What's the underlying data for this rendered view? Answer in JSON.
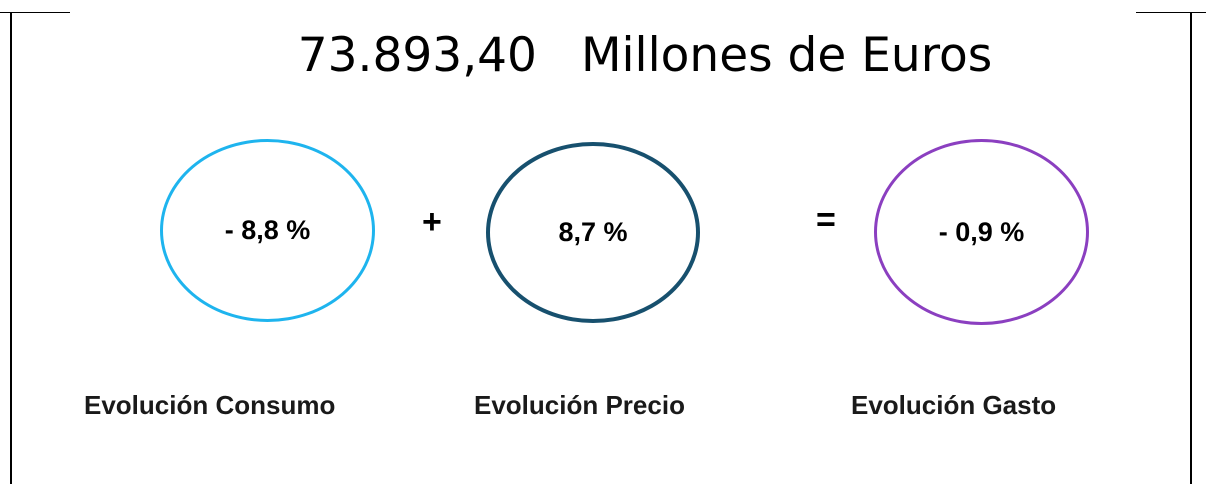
{
  "headline": {
    "amount": "73.893,40",
    "unit": "Millones de Euros"
  },
  "indicators": [
    {
      "key": "consumo",
      "value": "- 8,8 %",
      "label": "Evolución Consumo",
      "color": "#1eb4ee"
    },
    {
      "key": "precio",
      "value": "8,7 %",
      "label": "Evolución Precio",
      "color": "#17506e"
    },
    {
      "key": "gasto",
      "value": "- 0,9 %",
      "label": "Evolución Gasto",
      "color": "#8b3fc0"
    }
  ],
  "operators": {
    "plus": "+",
    "equals": "="
  }
}
